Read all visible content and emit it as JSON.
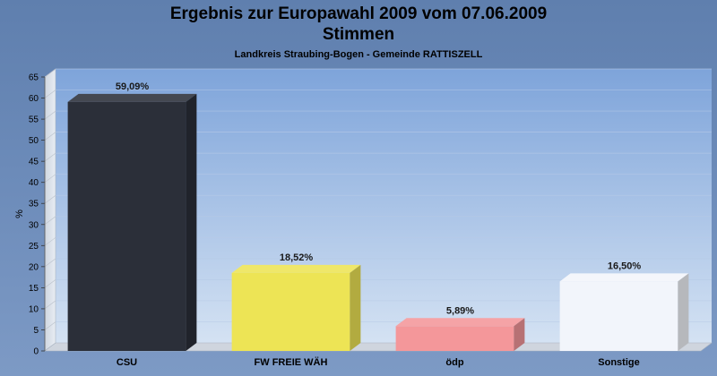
{
  "header": {
    "title": "Ergebnis zur Europawahl 2009 vom 07.06.2009",
    "subtitle": "Stimmen",
    "caption": "Landkreis Straubing-Bogen - Gemeinde RATTISZELL"
  },
  "chart_data": {
    "type": "bar",
    "categories": [
      "CSU",
      "FW FREIE WÄH",
      "ödp",
      "Sonstige"
    ],
    "values": [
      59.09,
      18.52,
      5.89,
      16.5
    ],
    "value_labels": [
      "59,09%",
      "18,52%",
      "5,89%",
      "16,50%"
    ],
    "colors": [
      "#2b2f39",
      "#ede455",
      "#f4979a",
      "#f2f5fb"
    ],
    "ylabel": "%",
    "ylim": [
      0,
      65
    ],
    "yticks": [
      0,
      5,
      10,
      15,
      20,
      25,
      30,
      35,
      40,
      45,
      50,
      55,
      60,
      65
    ],
    "grid": true,
    "legend": "none"
  }
}
